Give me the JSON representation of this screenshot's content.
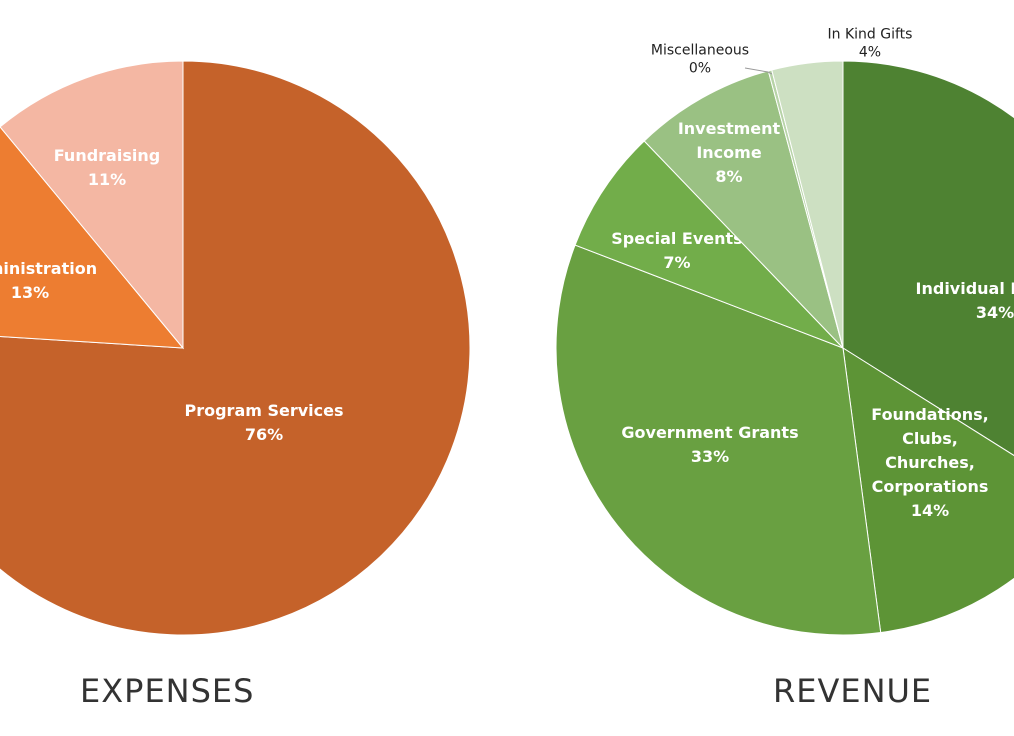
{
  "chart_data": [
    {
      "type": "pie",
      "title": "EXPENSES",
      "slices": [
        {
          "label": "Program Services",
          "value": 76,
          "display": "76%",
          "color": "#c5622a",
          "text_color": "#ffffff"
        },
        {
          "label": "Administration",
          "value": 13,
          "display": "13%",
          "color": "#ed7d31",
          "text_color": "#ffffff"
        },
        {
          "label": "Fundraising",
          "value": 11,
          "display": "11%",
          "color": "#f4b7a3",
          "text_color": "#ffffff"
        }
      ]
    },
    {
      "type": "pie",
      "title": "REVENUE",
      "slices": [
        {
          "label": "Individual Donors",
          "value": 34,
          "display": "34%",
          "color": "#4e8232",
          "text_color": "#ffffff"
        },
        {
          "label": "Foundations, Clubs, Churches, Corporations",
          "value": 14,
          "display": "14%",
          "color": "#5d9436",
          "text_color": "#ffffff"
        },
        {
          "label": "Government Grants",
          "value": 33,
          "display": "33%",
          "color": "#69a041",
          "text_color": "#ffffff"
        },
        {
          "label": "Special Events",
          "value": 7,
          "display": "7%",
          "color": "#72ad4a",
          "text_color": "#ffffff"
        },
        {
          "label": "Investment Income",
          "value": 8,
          "display": "8%",
          "color": "#9ac183",
          "text_color": "#ffffff"
        },
        {
          "label": "Miscellaneous",
          "value": 0.2,
          "display": "0%",
          "color": "#b7d3a7",
          "text_color": "#222222"
        },
        {
          "label": "In Kind Gifts",
          "value": 4,
          "display": "4%",
          "color": "#cde0c2",
          "text_color": "#222222"
        }
      ]
    }
  ]
}
